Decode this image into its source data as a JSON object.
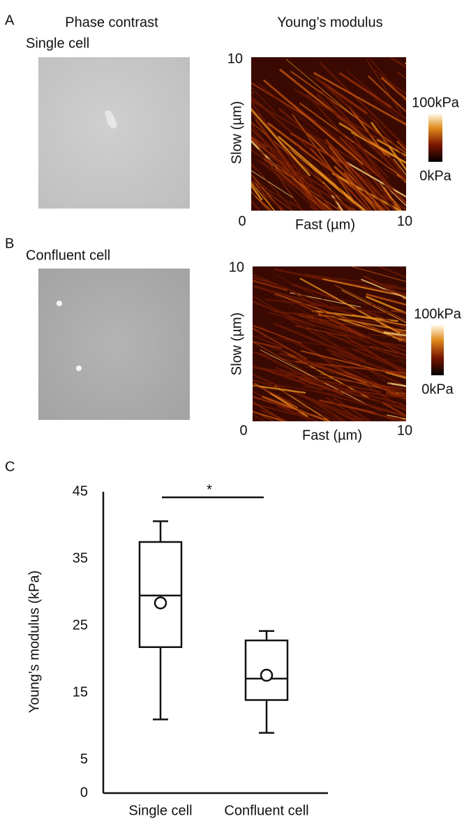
{
  "columns": [
    "Phase contrast",
    "Young’s modulus"
  ],
  "panels": [
    {
      "label": "A",
      "row_label": "Single cell",
      "map": {
        "y_title": "Slow (µm)",
        "x_title": "Fast (µm)",
        "origin": 0,
        "x_end": 10,
        "y_end": 10,
        "colorbar_max": "100kPa",
        "colorbar_min": "0kPa"
      }
    },
    {
      "label": "B",
      "row_label": "Confluent cell",
      "map": {
        "y_title": "Slow (µm)",
        "x_title": "Fast (µm)",
        "origin": 0,
        "x_end": 10,
        "y_end": 10,
        "colorbar_max": "100kPa",
        "colorbar_min": "0kPa"
      }
    }
  ],
  "panel_c_label": "C",
  "chart_data": {
    "type": "box",
    "ylabel": "Young’s modulus (kPa)",
    "categories": [
      "Single cell",
      "Confluent cell"
    ],
    "min": [
      11.0,
      9.0
    ],
    "q1": [
      21.8,
      13.9
    ],
    "median": [
      29.5,
      17.1
    ],
    "q3": [
      37.5,
      22.8
    ],
    "max": [
      40.6,
      24.2
    ],
    "mean": [
      28.4,
      17.6
    ],
    "ylim": [
      0,
      45
    ],
    "yticks": [
      0,
      5,
      15,
      25,
      35,
      45
    ],
    "annotation": "*"
  }
}
